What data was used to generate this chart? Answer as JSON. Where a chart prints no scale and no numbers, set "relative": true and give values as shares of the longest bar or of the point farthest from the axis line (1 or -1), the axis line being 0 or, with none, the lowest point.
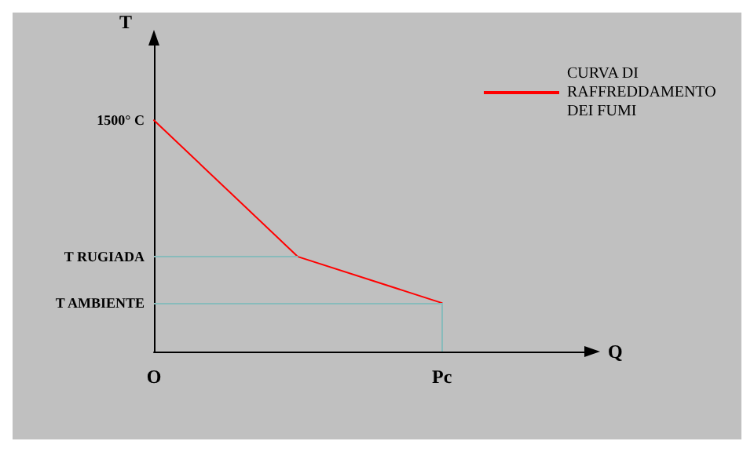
{
  "chart_data": {
    "type": "line",
    "xlabel": "Q",
    "ylabel": "T",
    "relative": true,
    "categories": [
      "O",
      null,
      "Pc",
      null
    ],
    "series": [
      {
        "name": "CURVA DI RAFFREDDAMENTO DEI FUMI",
        "color": "#ff0000",
        "values": [
          1,
          0.41,
          0.21,
          null
        ]
      }
    ],
    "annotations": [
      "1500° C"
    ],
    "ref_lines": [
      {
        "axis": "y",
        "value": 0.41,
        "label": "T RUGIADA",
        "color": "#88bbbb"
      },
      {
        "axis": "y",
        "value": 0.21,
        "label": "T AMBIENTE",
        "color": "#88bbbb"
      },
      {
        "axis": "x",
        "value": "Pc",
        "color": "#88bbbb"
      }
    ],
    "legend": "top right",
    "grid": false,
    "marker": "none",
    "line_style": "solid"
  }
}
